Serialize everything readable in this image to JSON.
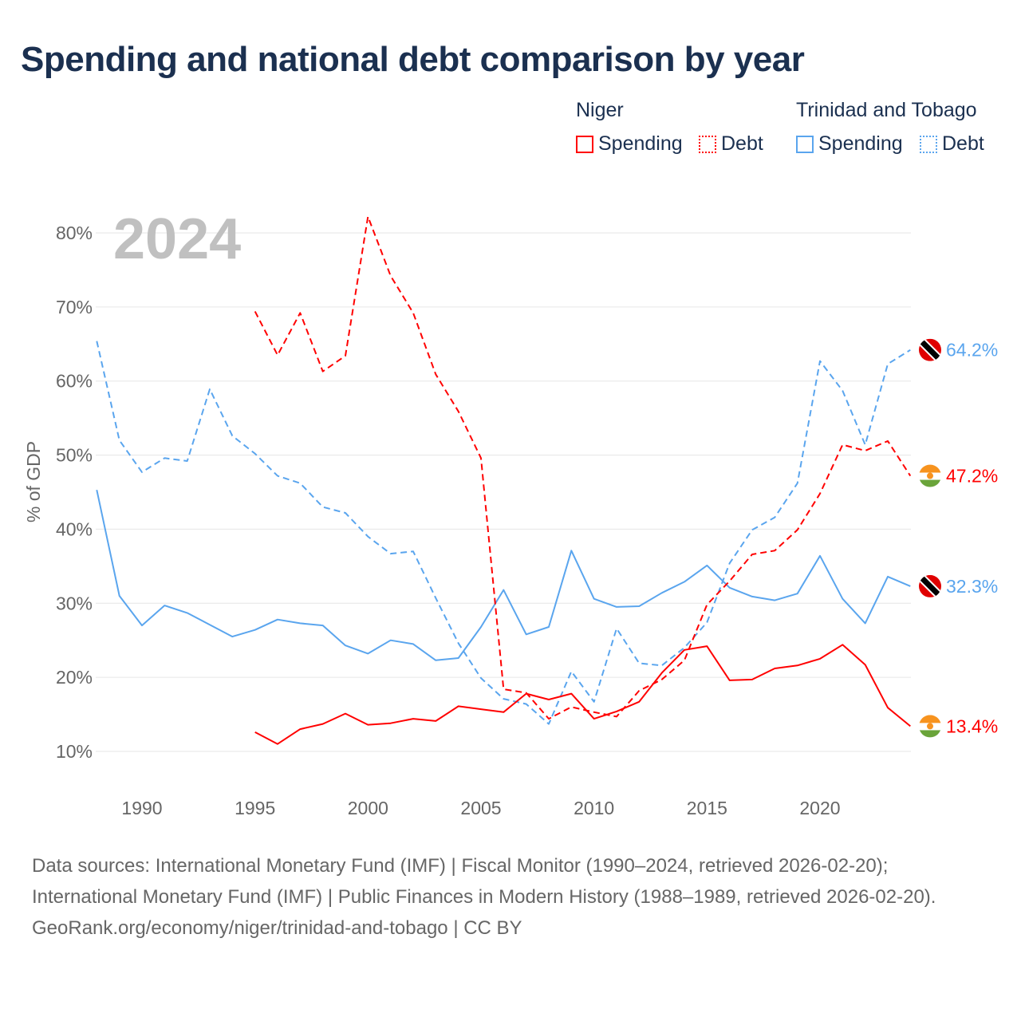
{
  "title": "Spending and national debt comparison by year",
  "legend": {
    "groups": [
      {
        "name": "Niger",
        "color": "#ff0000",
        "items": [
          "Spending",
          "Debt"
        ]
      },
      {
        "name": "Trinidad and Tobago",
        "color": "#5aa5ee",
        "items": [
          "Spending",
          "Debt"
        ]
      }
    ]
  },
  "year_label": "2024",
  "chart_data": {
    "type": "line",
    "title": "Spending and national debt comparison by year",
    "xlabel": "",
    "ylabel": "% of GDP",
    "xlim": [
      1988,
      2024
    ],
    "ylim": [
      5,
      83
    ],
    "xticks": [
      1990,
      1995,
      2000,
      2005,
      2010,
      2015,
      2020
    ],
    "yticks": [
      10,
      20,
      30,
      40,
      50,
      60,
      70,
      80
    ],
    "ytick_labels": [
      "10%",
      "20%",
      "30%",
      "40%",
      "50%",
      "60%",
      "70%",
      "80%"
    ],
    "grid": true,
    "series": [
      {
        "name": "Trinidad and Tobago Debt",
        "color": "#5aa5ee",
        "dash": true,
        "end_label": "64.2%",
        "flag": "tt",
        "x": [
          1988,
          1989,
          1990,
          1991,
          1992,
          1993,
          1994,
          1995,
          1996,
          1997,
          1998,
          1999,
          2000,
          2001,
          2002,
          2003,
          2004,
          2005,
          2006,
          2007,
          2008,
          2009,
          2010,
          2011,
          2012,
          2013,
          2014,
          2015,
          2016,
          2017,
          2018,
          2019,
          2020,
          2021,
          2022,
          2023,
          2024
        ],
        "y": [
          65.4,
          52.0,
          47.7,
          49.6,
          49.2,
          58.9,
          52.6,
          50.2,
          47.2,
          46.2,
          43.0,
          42.2,
          39.0,
          36.7,
          37.0,
          30.7,
          24.6,
          19.9,
          17.1,
          16.4,
          13.7,
          20.8,
          16.7,
          26.6,
          21.9,
          21.6,
          24.0,
          27.4,
          35.4,
          39.9,
          41.6,
          46.2,
          62.7,
          58.7,
          51.4,
          62.3,
          64.2
        ]
      },
      {
        "name": "Trinidad and Tobago Spending",
        "color": "#5aa5ee",
        "dash": false,
        "end_label": "32.3%",
        "flag": "tt",
        "x": [
          1988,
          1989,
          1990,
          1991,
          1992,
          1993,
          1994,
          1995,
          1996,
          1997,
          1998,
          1999,
          2000,
          2001,
          2002,
          2003,
          2004,
          2005,
          2006,
          2007,
          2008,
          2009,
          2010,
          2011,
          2012,
          2013,
          2014,
          2015,
          2016,
          2017,
          2018,
          2019,
          2020,
          2021,
          2022,
          2023,
          2024
        ],
        "y": [
          45.3,
          31.0,
          27.0,
          29.7,
          28.7,
          27.1,
          25.5,
          26.4,
          27.8,
          27.3,
          27.0,
          24.3,
          23.2,
          25.0,
          24.5,
          22.3,
          22.6,
          26.8,
          31.8,
          25.8,
          26.8,
          37.1,
          30.6,
          29.5,
          29.6,
          31.4,
          32.9,
          35.1,
          32.1,
          30.9,
          30.4,
          31.3,
          36.4,
          30.6,
          27.3,
          33.6,
          32.3
        ]
      },
      {
        "name": "Niger Debt",
        "color": "#ff0000",
        "dash": true,
        "end_label": "47.2%",
        "flag": "ne",
        "x": [
          1995,
          1996,
          1997,
          1998,
          1999,
          2000,
          2001,
          2002,
          2003,
          2004,
          2005,
          2006,
          2007,
          2008,
          2009,
          2010,
          2011,
          2012,
          2013,
          2014,
          2015,
          2016,
          2017,
          2018,
          2019,
          2020,
          2021,
          2022,
          2023,
          2024
        ],
        "y": [
          69.4,
          63.5,
          69.2,
          61.3,
          63.4,
          82.2,
          74.2,
          69.2,
          60.9,
          55.9,
          49.6,
          18.4,
          17.9,
          14.4,
          16.0,
          15.3,
          14.7,
          18.2,
          19.7,
          22.3,
          29.8,
          33.0,
          36.6,
          37.1,
          39.9,
          44.8,
          51.4,
          50.6,
          51.9,
          47.2
        ]
      },
      {
        "name": "Niger Spending",
        "color": "#ff0000",
        "dash": false,
        "end_label": "13.4%",
        "flag": "ne",
        "x": [
          1995,
          1996,
          1997,
          1998,
          1999,
          2000,
          2001,
          2002,
          2003,
          2004,
          2005,
          2006,
          2007,
          2008,
          2009,
          2010,
          2011,
          2012,
          2013,
          2014,
          2015,
          2016,
          2017,
          2018,
          2019,
          2020,
          2021,
          2022,
          2023,
          2024
        ],
        "y": [
          12.6,
          11.0,
          13.0,
          13.7,
          15.1,
          13.6,
          13.8,
          14.4,
          14.1,
          16.1,
          15.7,
          15.3,
          17.8,
          17.0,
          17.8,
          14.4,
          15.4,
          16.7,
          20.6,
          23.7,
          24.2,
          19.6,
          19.7,
          21.2,
          21.6,
          22.5,
          24.4,
          21.7,
          15.9,
          13.4
        ]
      }
    ]
  },
  "footer": {
    "sources": "Data sources: International Monetary Fund (IMF) | Fiscal Monitor (1990–2024, retrieved 2026-02-20); International Monetary Fund (IMF) | Public Finances in Modern History (1988–1989, retrieved 2026-02-20).",
    "credit": "GeoRank.org/economy/niger/trinidad-and-tobago | CC BY"
  }
}
